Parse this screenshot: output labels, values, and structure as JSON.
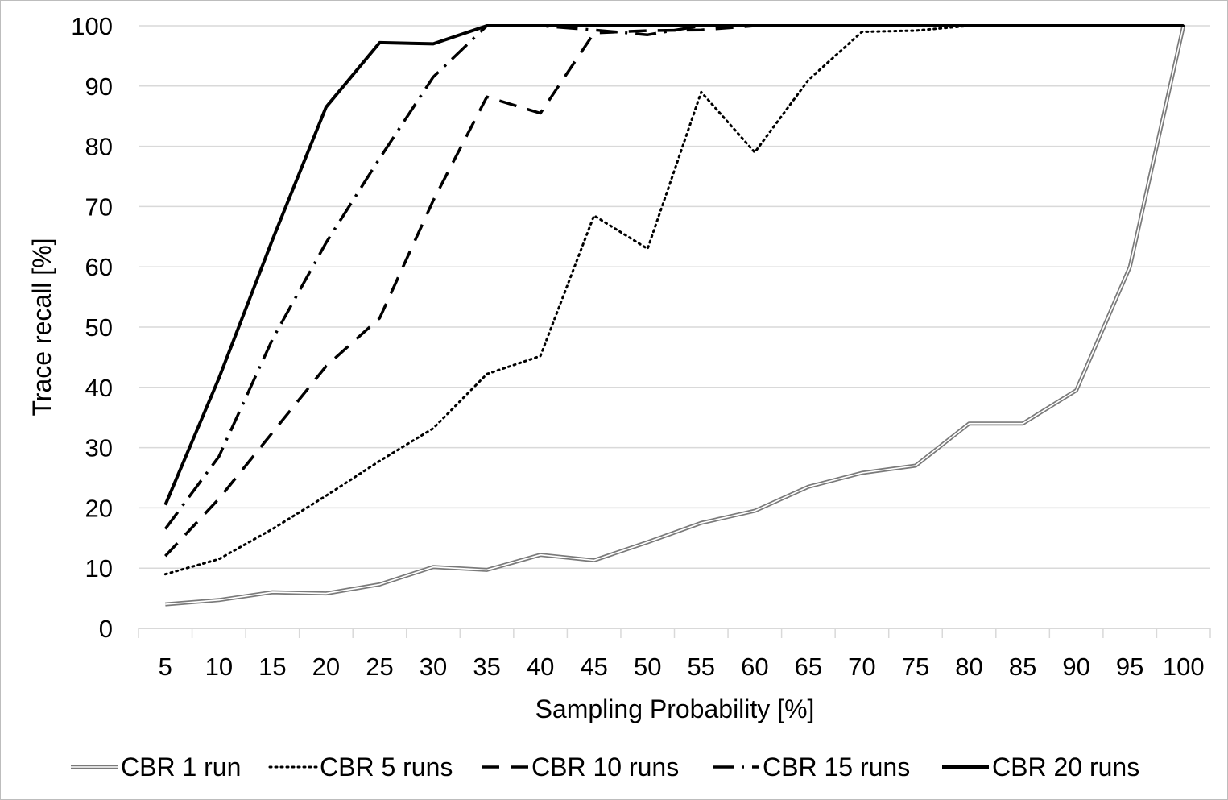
{
  "chart_data": {
    "type": "line",
    "xlabel": "Sampling Probability [%]",
    "ylabel": "Trace recall [%]",
    "ylim": [
      0,
      100
    ],
    "yticks": [
      0,
      10,
      20,
      30,
      40,
      50,
      60,
      70,
      80,
      90,
      100
    ],
    "grid": "horizontal",
    "legend_position": "bottom",
    "categories": [
      "5",
      "10",
      "15",
      "20",
      "25",
      "30",
      "35",
      "40",
      "45",
      "50",
      "55",
      "60",
      "65",
      "70",
      "75",
      "80",
      "85",
      "90",
      "95",
      "100"
    ],
    "series": [
      {
        "name": "CBR 1 run",
        "style": "double",
        "values": [
          4,
          4.7,
          6,
          5.8,
          7.3,
          10.2,
          9.7,
          12.2,
          11.3,
          14.3,
          17.5,
          19.5,
          23.5,
          25.8,
          27,
          34,
          34,
          39.5,
          60,
          100
        ]
      },
      {
        "name": "CBR 5 runs",
        "style": "dotted",
        "values": [
          9,
          11.5,
          16.5,
          22,
          27.8,
          33.2,
          42.2,
          45.2,
          68.5,
          63,
          89,
          79,
          91,
          99,
          99.2,
          100,
          100,
          100,
          100,
          100
        ]
      },
      {
        "name": "CBR 10 runs",
        "style": "dashed",
        "values": [
          12,
          21.5,
          32.5,
          43.5,
          51.5,
          71,
          88.2,
          85.5,
          98.8,
          99.2,
          99.3,
          100,
          100,
          100,
          100,
          100,
          100,
          100,
          100,
          100
        ]
      },
      {
        "name": "CBR 15 runs",
        "style": "dashdot",
        "values": [
          16.5,
          28.5,
          48,
          64,
          78,
          91.5,
          100,
          100,
          99.3,
          98.5,
          100,
          100,
          100,
          100,
          100,
          100,
          100,
          100,
          100,
          100
        ]
      },
      {
        "name": "CBR 20 runs",
        "style": "solid",
        "values": [
          20.5,
          41.5,
          64.5,
          86.5,
          97.2,
          97,
          100,
          100,
          100,
          100,
          100,
          100,
          100,
          100,
          100,
          100,
          100,
          100,
          100,
          100
        ]
      }
    ]
  }
}
